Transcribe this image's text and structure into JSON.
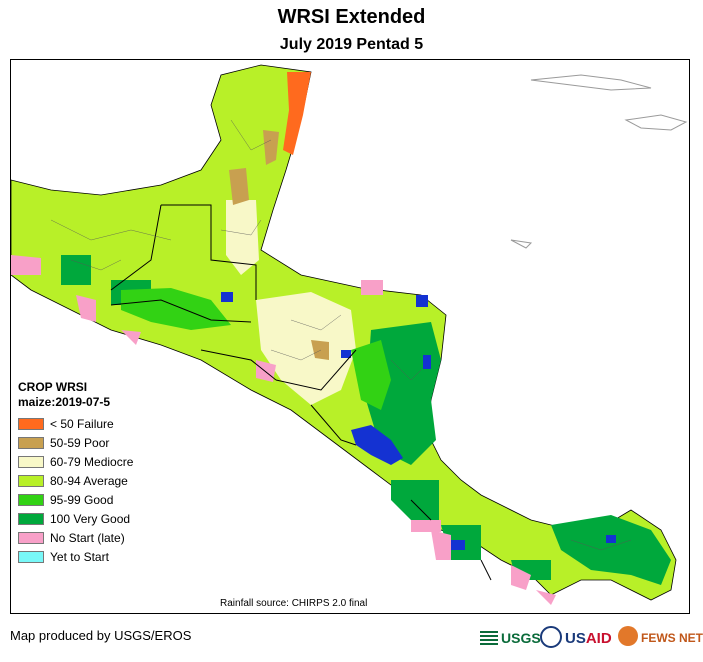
{
  "header": {
    "title": "WRSI Extended",
    "subtitle": "July 2019 Pentad 5"
  },
  "legend": {
    "heading": "CROP WRSI",
    "crop": "maize:2019-07-5",
    "items": [
      {
        "label": "< 50  Failure",
        "color": "#ff6a1e"
      },
      {
        "label": "50-59 Poor",
        "color": "#c8a050"
      },
      {
        "label": "60-79 Mediocre",
        "color": "#f8f8c8"
      },
      {
        "label": "80-94 Average",
        "color": "#b8f028"
      },
      {
        "label": "95-99 Good",
        "color": "#32d214"
      },
      {
        "label": "100 Very Good",
        "color": "#00a83c"
      },
      {
        "label": "No Start (late)",
        "color": "#f8a0c8"
      },
      {
        "label": "Yet to Start",
        "color": "#78f8f8"
      }
    ]
  },
  "source": "Rainfall source: CHIRPS 2.0 final",
  "credit": "Map produced by USGS/EROS",
  "logos": {
    "usgs": "USGS",
    "usaid_a": "US",
    "usaid_b": "AID",
    "fews": "FEWS NET"
  },
  "colors": {
    "water_body": "#1432d2",
    "boundary": "#000000",
    "coastline_outside": "#9a9a9a"
  }
}
